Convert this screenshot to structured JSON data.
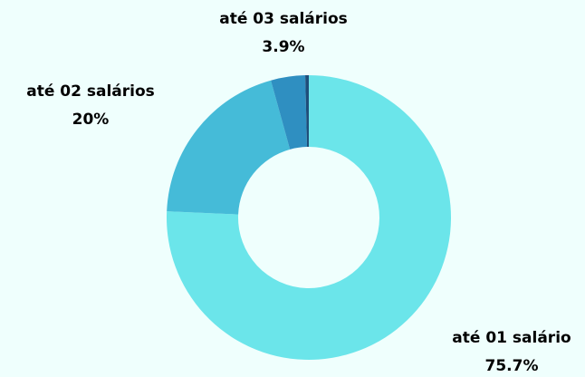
{
  "chart_data": {
    "type": "donut",
    "categories": [
      "até 01 salário",
      "até 02 salários",
      "até 03 salários",
      null
    ],
    "values": [
      75.7,
      20,
      3.9,
      0.4
    ],
    "value_labels": [
      "75.7%",
      "20%",
      "3.9%",
      null
    ],
    "colors": [
      "#6be5ea",
      "#45bbd8",
      "#2f8fc1",
      "#1f4e7a"
    ]
  }
}
